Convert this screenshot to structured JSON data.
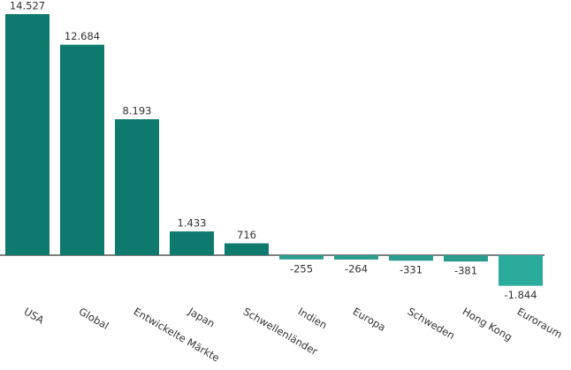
{
  "chart_data": {
    "type": "bar",
    "categories": [
      "USA",
      "Global",
      "Entwickelte Märkte",
      "Japan",
      "Schwellenländer",
      "Indien",
      "Europa",
      "Schweden",
      "Hong Kong",
      "Euroraum"
    ],
    "values": [
      14527,
      12684,
      8193,
      1433,
      716,
      -255,
      -264,
      -331,
      -381,
      -1844
    ],
    "value_labels": [
      "14.527",
      "12.684",
      "8.193",
      "1.433",
      "716",
      "-255",
      "-264",
      "-331",
      "-381",
      "-1.844"
    ],
    "colors": [
      "#0e7a6e",
      "#0e7a6e",
      "#0e7a6e",
      "#0e7a6e",
      "#0e7a6e",
      "#2a9d8f",
      "#2a9d8f",
      "#2a9d8f",
      "#2a9d8f",
      "#2bab9c"
    ]
  }
}
